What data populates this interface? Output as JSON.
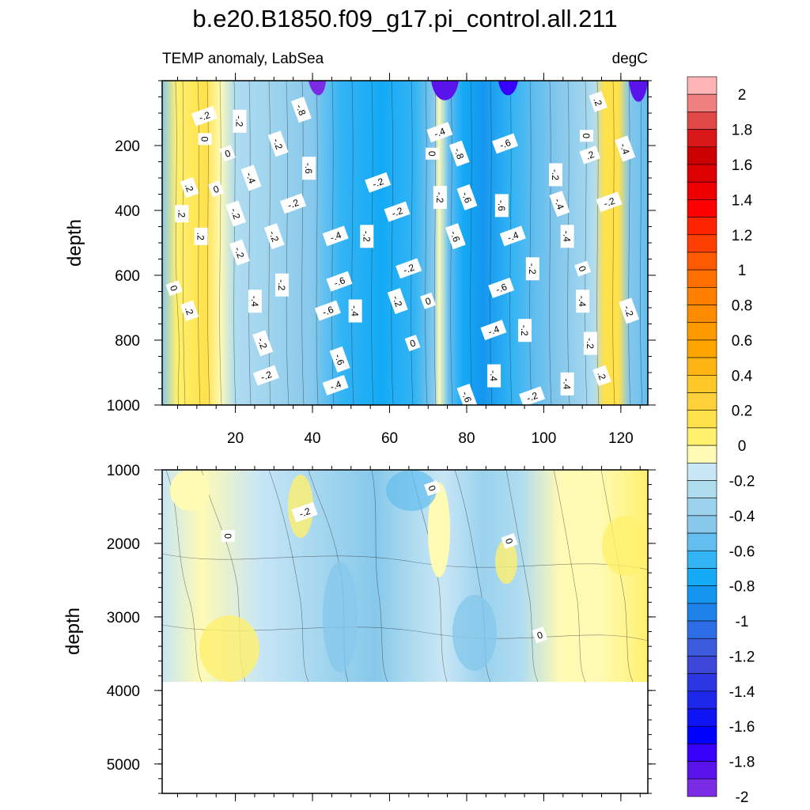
{
  "chart_data": {
    "type": "heatmap",
    "title": "b.e20.B1850.f09_g17.pi_control.all.211",
    "left_label": "TEMP anomaly, LabSea",
    "right_label": "degC",
    "panels": [
      {
        "name": "upper",
        "ylabel": "depth",
        "ylim": [
          1000,
          0
        ],
        "xlim": [
          1,
          127
        ],
        "y_ticks": [
          "200",
          "400",
          "600",
          "800",
          "1000"
        ],
        "y_tick_values": [
          200,
          400,
          600,
          800,
          1000
        ],
        "x_ticks": [
          "20",
          "40",
          "60",
          "80",
          "100",
          "120"
        ],
        "x_tick_values": [
          20,
          40,
          60,
          80,
          100,
          120
        ],
        "contour_labels": [
          {
            "text": "-.8",
            "x": 37,
            "y": 90
          },
          {
            "text": "-.2",
            "x": 12,
            "y": 110
          },
          {
            "text": "-.2",
            "x": 21,
            "y": 125
          },
          {
            "text": ".2",
            "x": 114,
            "y": 65
          },
          {
            "text": "-.4",
            "x": 73,
            "y": 160
          },
          {
            "text": "0",
            "x": 12,
            "y": 180
          },
          {
            "text": "-.2",
            "x": 31,
            "y": 195
          },
          {
            "text": "-.6",
            "x": 90,
            "y": 195
          },
          {
            "text": "0",
            "x": 111,
            "y": 170
          },
          {
            "text": "-.4",
            "x": 121,
            "y": 210
          },
          {
            "text": "0",
            "x": 18,
            "y": 225
          },
          {
            "text": "0",
            "x": 71,
            "y": 225
          },
          {
            "text": "-.8",
            "x": 78,
            "y": 225
          },
          {
            "text": ".2",
            "x": 112,
            "y": 230
          },
          {
            "text": "-.6",
            "x": 39,
            "y": 270
          },
          {
            "text": "-.4",
            "x": 24,
            "y": 300
          },
          {
            "text": "-.2",
            "x": 57,
            "y": 315
          },
          {
            "text": "-.2",
            "x": 103,
            "y": 290
          },
          {
            "text": ".2",
            "x": 8,
            "y": 330
          },
          {
            "text": "0",
            "x": 15,
            "y": 335
          },
          {
            "text": "-.2",
            "x": 73,
            "y": 360
          },
          {
            "text": "-.6",
            "x": 80,
            "y": 360
          },
          {
            "text": "-.2",
            "x": 35,
            "y": 380
          },
          {
            "text": "-.6",
            "x": 89,
            "y": 385
          },
          {
            "text": "-.4",
            "x": 104,
            "y": 380
          },
          {
            "text": "-.2",
            "x": 117,
            "y": 375
          },
          {
            "text": ".2",
            "x": 6,
            "y": 410
          },
          {
            "text": "-.2",
            "x": 20,
            "y": 410
          },
          {
            "text": "-.2",
            "x": 62,
            "y": 405
          },
          {
            "text": ".2",
            "x": 11,
            "y": 480
          },
          {
            "text": "-.2",
            "x": 30,
            "y": 480
          },
          {
            "text": "-.4",
            "x": 46,
            "y": 480
          },
          {
            "text": "-.2",
            "x": 54,
            "y": 480
          },
          {
            "text": "-.6",
            "x": 77,
            "y": 480
          },
          {
            "text": "-.4",
            "x": 92,
            "y": 480
          },
          {
            "text": "-.4",
            "x": 106,
            "y": 480
          },
          {
            "text": "-.2",
            "x": 21,
            "y": 530
          },
          {
            "text": "-.2",
            "x": 65,
            "y": 580
          },
          {
            "text": "-.2",
            "x": 97,
            "y": 580
          },
          {
            "text": "0",
            "x": 110,
            "y": 580
          },
          {
            "text": "-.6",
            "x": 47,
            "y": 620
          },
          {
            "text": "-.2",
            "x": 32,
            "y": 630
          },
          {
            "text": "0",
            "x": 4,
            "y": 640
          },
          {
            "text": "-.6",
            "x": 89,
            "y": 640
          },
          {
            "text": "-.4",
            "x": 25,
            "y": 680
          },
          {
            "text": "-.2",
            "x": 62,
            "y": 680
          },
          {
            "text": "0",
            "x": 70,
            "y": 680
          },
          {
            "text": "-.4",
            "x": 110,
            "y": 680
          },
          {
            "text": ".2",
            "x": 8,
            "y": 710
          },
          {
            "text": "-.6",
            "x": 44,
            "y": 710
          },
          {
            "text": "-.4",
            "x": 51,
            "y": 710
          },
          {
            "text": "-.2",
            "x": 122,
            "y": 710
          },
          {
            "text": "-.4",
            "x": 87,
            "y": 770
          },
          {
            "text": "-.2",
            "x": 95,
            "y": 770
          },
          {
            "text": "-.2",
            "x": 27,
            "y": 810
          },
          {
            "text": "0",
            "x": 66,
            "y": 810
          },
          {
            "text": "-.2",
            "x": 112,
            "y": 810
          },
          {
            "text": "-.6",
            "x": 47,
            "y": 860
          },
          {
            "text": "-.2",
            "x": 28,
            "y": 910
          },
          {
            "text": "-.4",
            "x": 87,
            "y": 910
          },
          {
            "text": ".2",
            "x": 115,
            "y": 910
          },
          {
            "text": "-.4",
            "x": 46,
            "y": 940
          },
          {
            "text": "-.4",
            "x": 106,
            "y": 935
          },
          {
            "text": "-.6",
            "x": 80,
            "y": 975
          },
          {
            "text": "-.2",
            "x": 97,
            "y": 975
          }
        ]
      },
      {
        "name": "lower",
        "ylabel": "depth",
        "ylim": [
          5400,
          1000
        ],
        "xlim": [
          1,
          127
        ],
        "data_bottom_depth": 3870,
        "y_ticks": [
          "1000",
          "2000",
          "3000",
          "4000",
          "5000"
        ],
        "y_tick_values": [
          1000,
          2000,
          3000,
          4000,
          5000
        ],
        "contour_labels": [
          {
            "text": "0",
            "x": 71,
            "y": 1250
          },
          {
            "text": "-.2",
            "x": 38,
            "y": 1580
          },
          {
            "text": "0",
            "x": 18,
            "y": 1900
          },
          {
            "text": "0",
            "x": 91,
            "y": 1970
          },
          {
            "text": "0",
            "x": 99,
            "y": 3250
          }
        ]
      }
    ],
    "colorbar": {
      "levels": [
        2.1,
        2,
        1.9,
        1.8,
        1.7,
        1.6,
        1.5,
        1.4,
        1.3,
        1.2,
        1.1,
        1,
        0.9,
        0.8,
        0.7,
        0.6,
        0.5,
        0.4,
        0.3,
        0.2,
        0.1,
        0,
        -0.1,
        -0.2,
        -0.3,
        -0.4,
        -0.5,
        -0.6,
        -0.7,
        -0.8,
        -0.9,
        -1,
        -1.1,
        -1.2,
        -1.3,
        -1.4,
        -1.5,
        -1.6,
        -1.7,
        -1.8,
        -1.9,
        -2
      ],
      "labels": [
        "2",
        "1.8",
        "1.6",
        "1.4",
        "1.2",
        "1",
        "0.8",
        "0.6",
        "0.4",
        "0.2",
        "0",
        "-0.2",
        "-0.4",
        "-0.6",
        "-0.8",
        "-1",
        "-1.2",
        "-1.4",
        "-1.6",
        "-1.8",
        "-2"
      ],
      "label_values": [
        2,
        1.8,
        1.6,
        1.4,
        1.2,
        1,
        0.8,
        0.6,
        0.4,
        0.2,
        0,
        -0.2,
        -0.4,
        -0.6,
        -0.8,
        -1,
        -1.2,
        -1.4,
        -1.6,
        -1.8,
        -2
      ],
      "colors": [
        "#FFB5B5",
        "#F08080",
        "#E04848",
        "#D81818",
        "#CC0000",
        "#DD0000",
        "#EE0000",
        "#FF0000",
        "#FF2400",
        "#FF3F00",
        "#FF5A00",
        "#FF6E00",
        "#FF7F00",
        "#FF8C00",
        "#FF9900",
        "#FFA500",
        "#FFB414",
        "#FFC828",
        "#FFD23C",
        "#FFE14B",
        "#FFF06E",
        "#FFFAB4",
        "#C8E6F5",
        "#B0DCF0",
        "#9BD2EE",
        "#87C8EB",
        "#64BEF0",
        "#32B4F5",
        "#14AAF5",
        "#1496F0",
        "#1E82EB",
        "#2D6EE6",
        "#3C5ADC",
        "#3C46D7",
        "#2D37E1",
        "#1E28EB",
        "#0F14F5",
        "#0000FF",
        "#3700FA",
        "#5A14EB",
        "#7B2BE3"
      ]
    }
  }
}
